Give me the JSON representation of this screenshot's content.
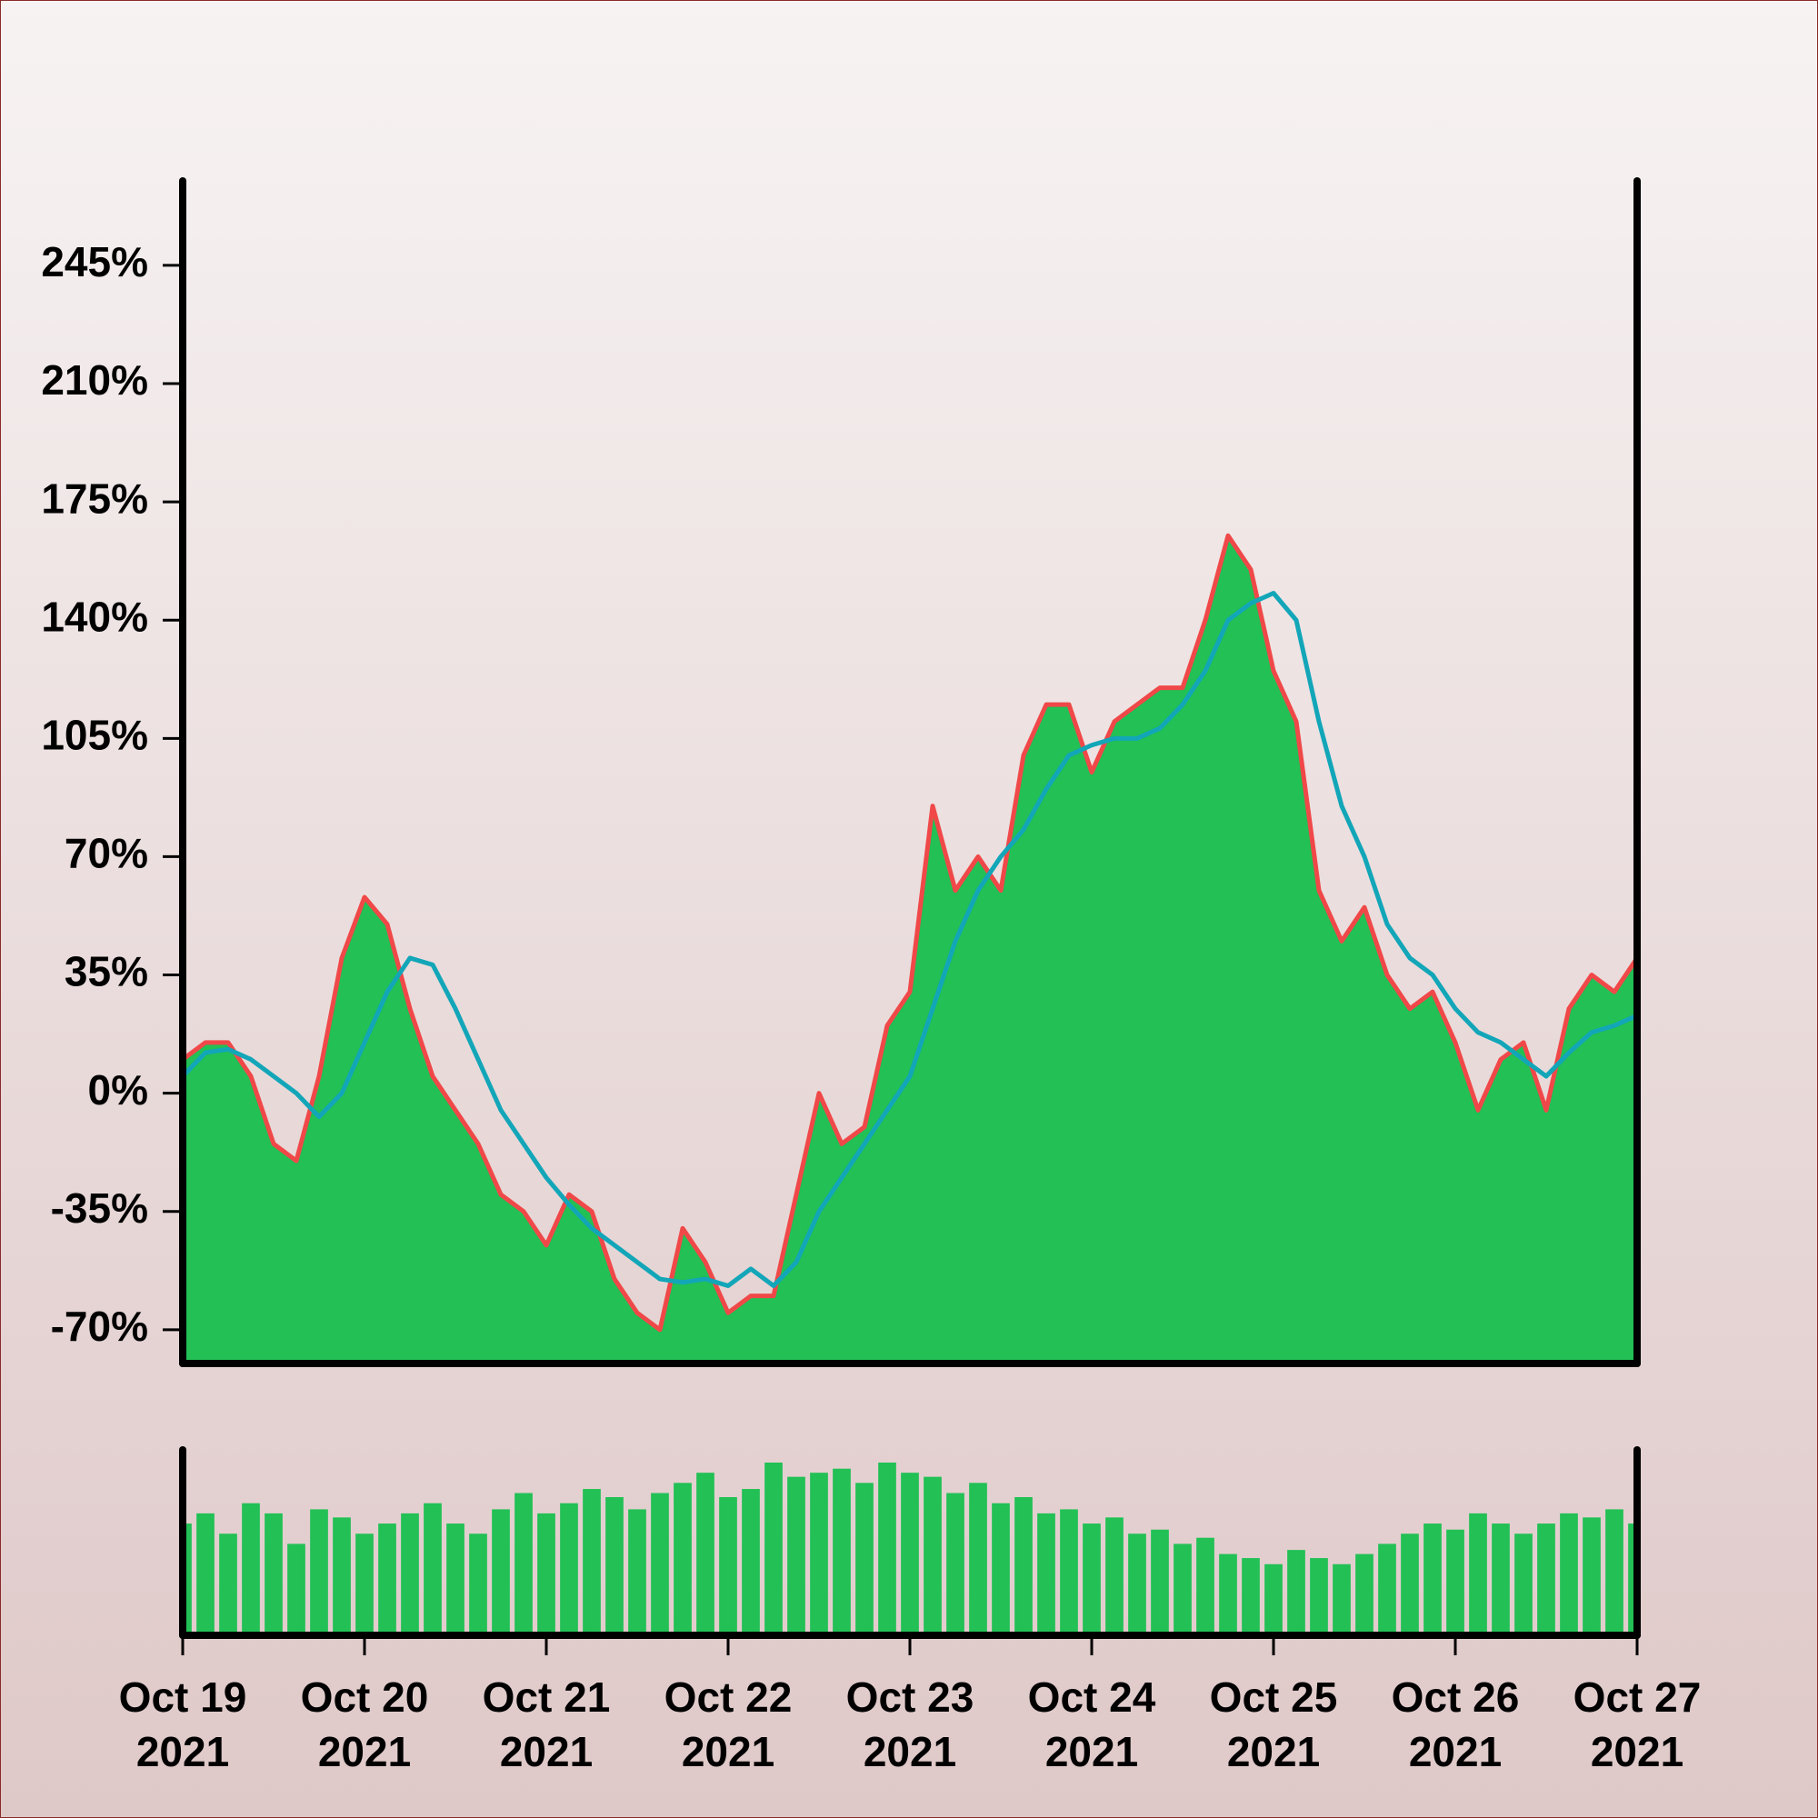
{
  "chart_data": {
    "type": "area",
    "x": [
      0,
      3,
      6,
      9,
      12,
      15,
      18,
      21,
      24,
      27,
      30,
      33,
      36,
      39,
      42,
      45,
      48,
      51,
      54,
      57,
      60,
      63,
      66,
      69,
      72,
      75,
      78,
      81,
      84,
      87,
      90,
      93,
      96,
      99,
      102,
      105,
      108,
      111,
      114,
      117,
      120,
      123,
      126,
      129,
      132,
      135,
      138,
      141,
      144,
      147,
      150,
      153,
      156,
      159,
      162,
      165,
      168,
      171,
      174,
      177,
      180,
      183,
      186,
      189,
      192
    ],
    "values": [
      10,
      15,
      15,
      5,
      -15,
      -20,
      5,
      40,
      58,
      50,
      25,
      5,
      -5,
      -15,
      -30,
      -35,
      -45,
      -30,
      -35,
      -55,
      -65,
      -70,
      -40,
      -50,
      -65,
      -60,
      -60,
      -30,
      0,
      -15,
      -10,
      20,
      30,
      85,
      60,
      70,
      60,
      100,
      115,
      115,
      95,
      110,
      115,
      120,
      120,
      140,
      165,
      155,
      125,
      110,
      60,
      45,
      55,
      35,
      25,
      30,
      15,
      -5,
      10,
      15,
      -5,
      25,
      35,
      30,
      40
    ],
    "color": "#22c055",
    "line_color": "#f04848",
    "ma_values": [
      5,
      12,
      13,
      10,
      5,
      0,
      -7,
      0,
      15,
      30,
      40,
      38,
      25,
      10,
      -5,
      -15,
      -25,
      -33,
      -40,
      -45,
      -50,
      -55,
      -56,
      -55,
      -57,
      -52,
      -57,
      -50,
      -35,
      -25,
      -15,
      -5,
      5,
      25,
      45,
      60,
      70,
      78,
      90,
      100,
      103,
      105,
      105,
      108,
      115,
      125,
      140,
      145,
      148,
      140,
      110,
      85,
      70,
      50,
      40,
      35,
      25,
      18,
      15,
      10,
      5,
      12,
      18,
      20,
      23
    ],
    "ma_color": "#12a6b8",
    "volume": [
      55,
      60,
      50,
      65,
      60,
      45,
      62,
      58,
      50,
      55,
      60,
      65,
      55,
      50,
      62,
      70,
      60,
      65,
      72,
      68,
      62,
      70,
      75,
      80,
      68,
      72,
      85,
      78,
      80,
      82,
      75,
      85,
      80,
      78,
      70,
      75,
      65,
      68,
      60,
      62,
      55,
      58,
      50,
      52,
      45,
      48,
      40,
      38,
      35,
      42,
      38,
      35,
      40,
      45,
      50,
      55,
      52,
      60,
      55,
      50,
      55,
      60,
      58,
      62,
      55
    ],
    "volume_color": "#22c055",
    "xlim": [
      0,
      192
    ],
    "xticks": [
      {
        "value": 0,
        "label": "Oct 19\n2021"
      },
      {
        "value": 24,
        "label": "Oct 20\n2021"
      },
      {
        "value": 48,
        "label": "Oct 21\n2021"
      },
      {
        "value": 72,
        "label": "Oct 22\n2021"
      },
      {
        "value": 96,
        "label": "Oct 23\n2021"
      },
      {
        "value": 120,
        "label": "Oct 24\n2021"
      },
      {
        "value": 144,
        "label": "Oct 25\n2021"
      },
      {
        "value": 168,
        "label": "Oct 26\n2021"
      },
      {
        "value": 192,
        "label": "Oct 27\n2021"
      }
    ],
    "ylim": [
      -80,
      270
    ],
    "yticks": [
      {
        "value": -70,
        "label": "-70%"
      },
      {
        "value": -35,
        "label": "-35%"
      },
      {
        "value": 0,
        "label": "0%"
      },
      {
        "value": 35,
        "label": "35%"
      },
      {
        "value": 70,
        "label": "70%"
      },
      {
        "value": 105,
        "label": "105%"
      },
      {
        "value": 140,
        "label": "140%"
      },
      {
        "value": 175,
        "label": "175%"
      },
      {
        "value": 210,
        "label": "210%"
      },
      {
        "value": 245,
        "label": "245%"
      }
    ]
  }
}
